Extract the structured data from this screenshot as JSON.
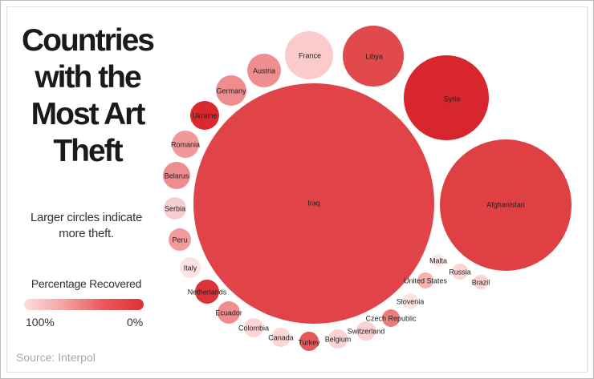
{
  "title": "Countries with the Most Art Theft",
  "subtitle": "Larger circles indicate more theft.",
  "legend": {
    "title": "Percentage Recovered",
    "min_label": "100%",
    "max_label": "0%"
  },
  "source": "Source: Interpol",
  "colors": {
    "high_recovered": "#fbdede",
    "low_recovered": "#de2f34"
  },
  "chart_data": {
    "type": "bubble",
    "title": "Countries with the Most Art Theft",
    "size_encodes": "theft",
    "color_encodes": "Percentage Recovered",
    "points": [
      {
        "label": "Iraq",
        "color": "#e04448"
      },
      {
        "label": "Afghanistan",
        "color": "#df4044"
      },
      {
        "label": "Syria",
        "color": "#d7262d"
      },
      {
        "label": "Libya",
        "color": "#e04a4d"
      },
      {
        "label": "France",
        "color": "#fbcbcb"
      },
      {
        "label": "Austria",
        "color": "#ef8e90"
      },
      {
        "label": "Germany",
        "color": "#ef8c8e"
      },
      {
        "label": "Ukraine",
        "color": "#d9282e"
      },
      {
        "label": "Romania",
        "color": "#f0989a"
      },
      {
        "label": "Belarus",
        "color": "#ee8d8f"
      },
      {
        "label": "Serbia",
        "color": "#f9cdcd"
      },
      {
        "label": "Peru",
        "color": "#f29a9c"
      },
      {
        "label": "Italy",
        "color": "#fde3e3"
      },
      {
        "label": "Netherlands",
        "color": "#dc3338"
      },
      {
        "label": "Ecuador",
        "color": "#ef8d8f"
      },
      {
        "label": "Colombia",
        "color": "#fbd5d5"
      },
      {
        "label": "Canada",
        "color": "#fbd7d7"
      },
      {
        "label": "Turkey",
        "color": "#e4585c"
      },
      {
        "label": "Belgium",
        "color": "#fbd3d3"
      },
      {
        "label": "Switzerland",
        "color": "#fad0d0"
      },
      {
        "label": "Czech Republic",
        "color": "#ed7c7f"
      },
      {
        "label": "Slovenia",
        "color": "#fde4e4"
      },
      {
        "label": "United States",
        "color": "#f6b2b3"
      },
      {
        "label": "Malta",
        "color": "#fde5e5"
      },
      {
        "label": "Russia",
        "color": "#fbd5d5"
      },
      {
        "label": "Brazil",
        "color": "#fbd1d1"
      }
    ]
  }
}
